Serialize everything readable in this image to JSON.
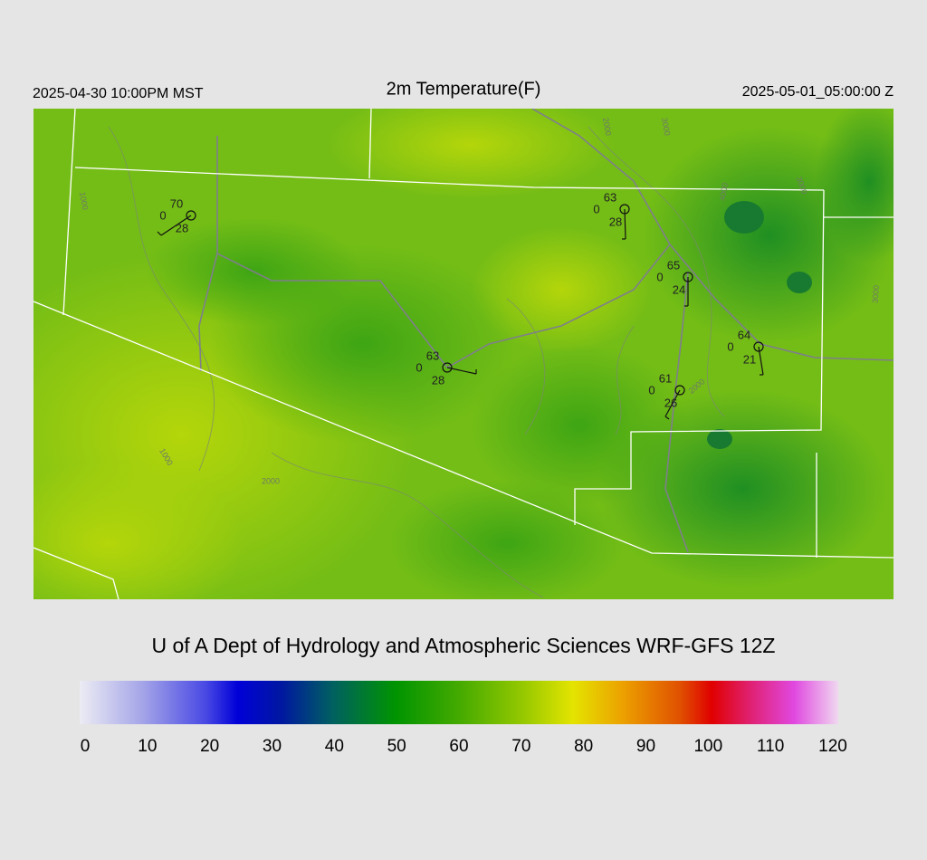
{
  "header": {
    "left": "2025-04-30 10:00PM MST",
    "title": "2m Temperature(F)",
    "right": "2025-05-01_05:00:00 Z"
  },
  "stations": [
    {
      "temp": 70,
      "wind": 0,
      "dewpoint": 28
    },
    {
      "temp": 63,
      "wind": 0,
      "dewpoint": 28
    },
    {
      "temp": 65,
      "wind": 0,
      "dewpoint": 24
    },
    {
      "temp": 64,
      "wind": 0,
      "dewpoint": 21
    },
    {
      "temp": 63,
      "wind": 0,
      "dewpoint": 28
    },
    {
      "temp": 61,
      "wind": 0,
      "dewpoint": 26
    }
  ],
  "contour_labels": [
    "2000",
    "3000",
    "1000",
    "1000",
    "2000",
    "2000",
    "4000",
    "3000",
    "3000"
  ],
  "credit": "U of A Dept of Hydrology and Atmospheric Sciences WRF-GFS 12Z",
  "colorbar": {
    "ticks": [
      0,
      10,
      20,
      30,
      40,
      50,
      60,
      70,
      80,
      90,
      100,
      110,
      120
    ],
    "stops": [
      {
        "value": 0,
        "color": "#ececf4"
      },
      {
        "value": 10,
        "color": "#a4a4e8"
      },
      {
        "value": 20,
        "color": "#4848e4"
      },
      {
        "value": 25,
        "color": "#0000d8"
      },
      {
        "value": 32,
        "color": "#0018a0"
      },
      {
        "value": 40,
        "color": "#006060"
      },
      {
        "value": 50,
        "color": "#009400"
      },
      {
        "value": 60,
        "color": "#44aa00"
      },
      {
        "value": 70,
        "color": "#94c800"
      },
      {
        "value": 78,
        "color": "#e4e400"
      },
      {
        "value": 86,
        "color": "#eca000"
      },
      {
        "value": 95,
        "color": "#e05000"
      },
      {
        "value": 100,
        "color": "#e00000"
      },
      {
        "value": 106,
        "color": "#e02070"
      },
      {
        "value": 113,
        "color": "#e048e0"
      },
      {
        "value": 120,
        "color": "#f0d8f0"
      }
    ]
  }
}
